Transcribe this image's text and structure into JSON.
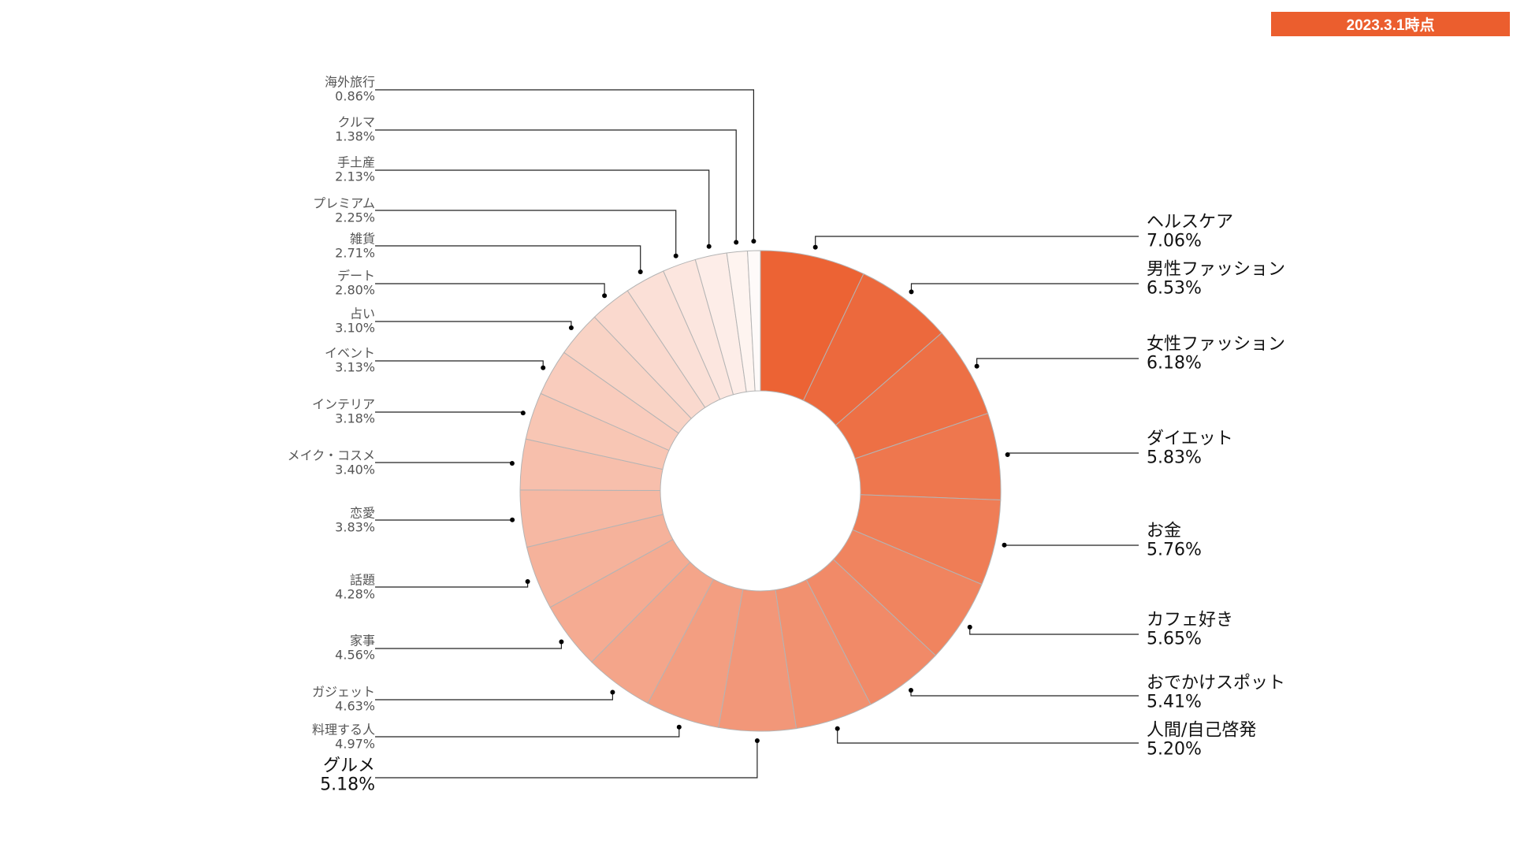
{
  "header": {
    "date_label": "2023.3.1時点"
  },
  "colors": {
    "accent": "#eb5e2e",
    "slice_border": "#b4b4b4",
    "leader": "#222222"
  },
  "chart_data": {
    "type": "pie",
    "donut": true,
    "legend": "none",
    "slices": [
      {
        "label": "ヘルスケア",
        "pct_label": "7.06%",
        "value": 7.06
      },
      {
        "label": "男性ファッション",
        "pct_label": "6.53%",
        "value": 6.53
      },
      {
        "label": "女性ファッション",
        "pct_label": "6.18%",
        "value": 6.18
      },
      {
        "label": "ダイエット",
        "pct_label": "5.83%",
        "value": 5.83
      },
      {
        "label": "お金",
        "pct_label": "5.76%",
        "value": 5.76
      },
      {
        "label": "カフェ好き",
        "pct_label": "5.65%",
        "value": 5.65
      },
      {
        "label": "おでかけスポット",
        "pct_label": "5.41%",
        "value": 5.41
      },
      {
        "label": "人間/自己啓発",
        "pct_label": "5.20%",
        "value": 5.2
      },
      {
        "label": "グルメ",
        "pct_label": "5.18%",
        "value": 5.18
      },
      {
        "label": "料理する人",
        "pct_label": "4.97%",
        "value": 4.97
      },
      {
        "label": "ガジェット",
        "pct_label": "4.63%",
        "value": 4.63
      },
      {
        "label": "家事",
        "pct_label": "4.56%",
        "value": 4.56
      },
      {
        "label": "話題",
        "pct_label": "4.28%",
        "value": 4.28
      },
      {
        "label": "恋愛",
        "pct_label": "3.83%",
        "value": 3.83
      },
      {
        "label": "メイク・コスメ",
        "pct_label": "3.40%",
        "value": 3.4
      },
      {
        "label": "インテリア",
        "pct_label": "3.18%",
        "value": 3.18
      },
      {
        "label": "イベント",
        "pct_label": "3.13%",
        "value": 3.13
      },
      {
        "label": "占い",
        "pct_label": "3.10%",
        "value": 3.1
      },
      {
        "label": "デート",
        "pct_label": "2.80%",
        "value": 2.8
      },
      {
        "label": "雑貨",
        "pct_label": "2.71%",
        "value": 2.71
      },
      {
        "label": "プレミアム",
        "pct_label": "2.25%",
        "value": 2.25
      },
      {
        "label": "手土産",
        "pct_label": "2.13%",
        "value": 2.13
      },
      {
        "label": "クルマ",
        "pct_label": "1.38%",
        "value": 1.38
      },
      {
        "label": "海外旅行",
        "pct_label": "0.86%",
        "value": 0.86
      }
    ]
  }
}
